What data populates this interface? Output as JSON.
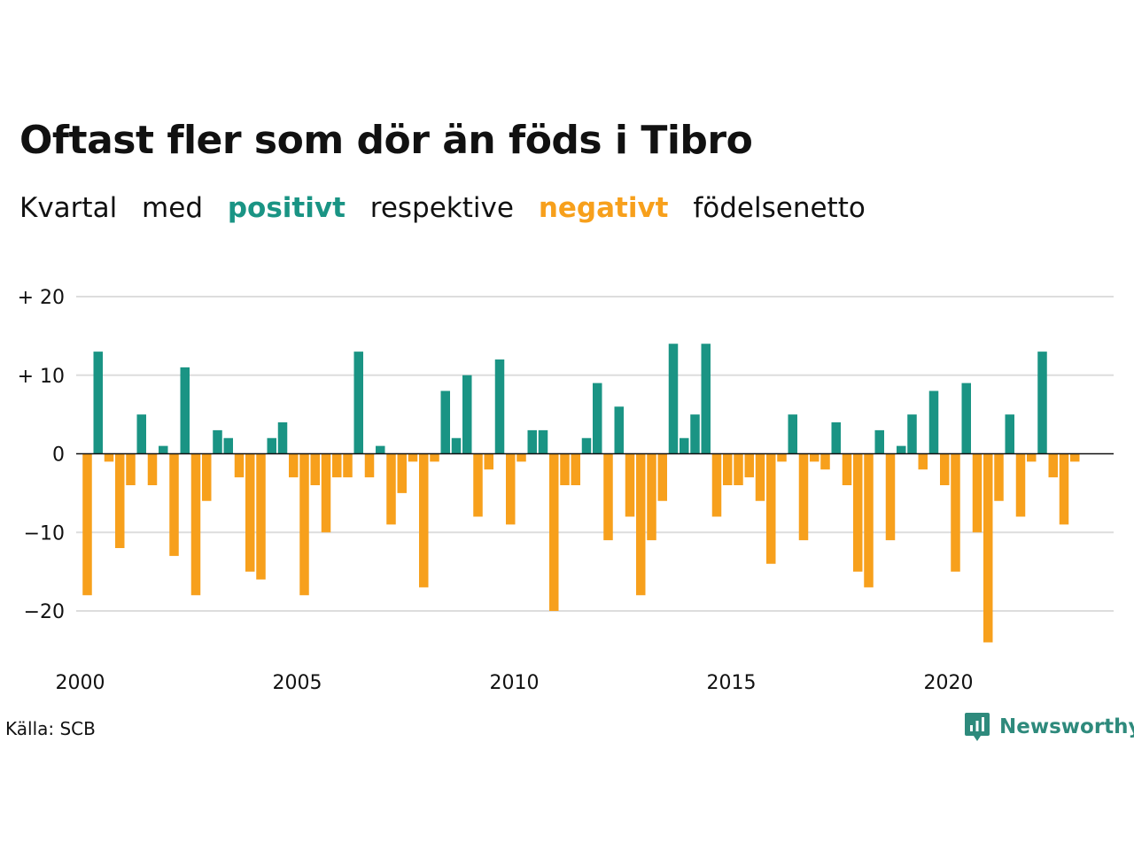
{
  "title": "Oftast fler som dör än föds i Tibro",
  "subtitle": {
    "part1": "Kvartal",
    "part2": "med",
    "positive": "positivt",
    "part3": "respektive",
    "negative": "negativt",
    "part4": "födelsenetto"
  },
  "colors": {
    "positive": "#1a9484",
    "negative": "#f7a01c",
    "grid": "#dddddd",
    "brand": "#2e8a7c"
  },
  "source": "Källa: SCB",
  "brand": {
    "name": "Newsworthy",
    "icon": "newsworthy-logo-icon"
  },
  "chart_data": {
    "type": "bar",
    "title": "Oftast fler som dör än föds i Tibro",
    "xlabel": "",
    "ylabel": "",
    "x_start": "2000 Q1",
    "frequency": "quarterly",
    "ylim": [
      -25,
      20
    ],
    "y_ticks": [
      20,
      10,
      0,
      -10,
      -20
    ],
    "y_tick_labels": [
      "+ 20",
      "+ 10",
      "0",
      "−10",
      "−20"
    ],
    "x_ticks": [
      2000,
      2005,
      2010,
      2015,
      2020
    ],
    "x_tick_labels": [
      "2000",
      "2005",
      "2010",
      "2015",
      "2020"
    ],
    "grid": true,
    "legend": "none",
    "values": [
      -18,
      13,
      -1,
      -12,
      -4,
      5,
      -4,
      1,
      -13,
      11,
      -18,
      -6,
      3,
      2,
      -3,
      -15,
      -16,
      2,
      4,
      -3,
      -18,
      -4,
      -10,
      -3,
      -3,
      13,
      -3,
      1,
      -9,
      -5,
      -1,
      -17,
      -1,
      8,
      2,
      10,
      -8,
      -2,
      12,
      -9,
      -1,
      3,
      3,
      -20,
      -4,
      -4,
      2,
      9,
      -11,
      6,
      -8,
      -18,
      -11,
      -6,
      14,
      2,
      5,
      14,
      -8,
      -4,
      -4,
      -3,
      -6,
      -14,
      -1,
      5,
      -11,
      -1,
      -2,
      4,
      -4,
      -15,
      -17,
      3,
      -11,
      1,
      5,
      -2,
      8,
      -4,
      -15,
      9,
      -10,
      -24,
      -6,
      5,
      -8,
      -1,
      13,
      -3,
      -9,
      -1
    ]
  }
}
